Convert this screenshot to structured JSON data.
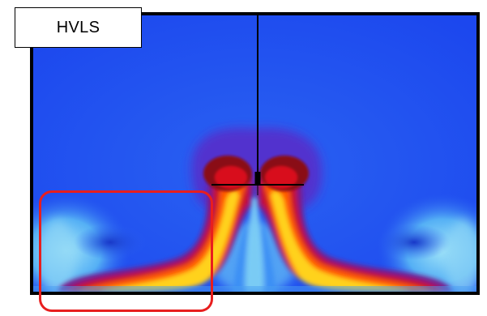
{
  "label": {
    "text": "HVLS"
  },
  "colors": {
    "background": "#1f4df0",
    "frame": "#000000",
    "highlight": "#e81e1e",
    "colormap": [
      "#1f4df0",
      "#3a8ef5",
      "#7fd0f5",
      "#5a2cc8",
      "#8a1a7a",
      "#c8102a",
      "#ff5a00",
      "#ffd21a",
      "#fffa8a"
    ]
  },
  "icons": {
    "fan": "ceiling-fan-icon"
  }
}
